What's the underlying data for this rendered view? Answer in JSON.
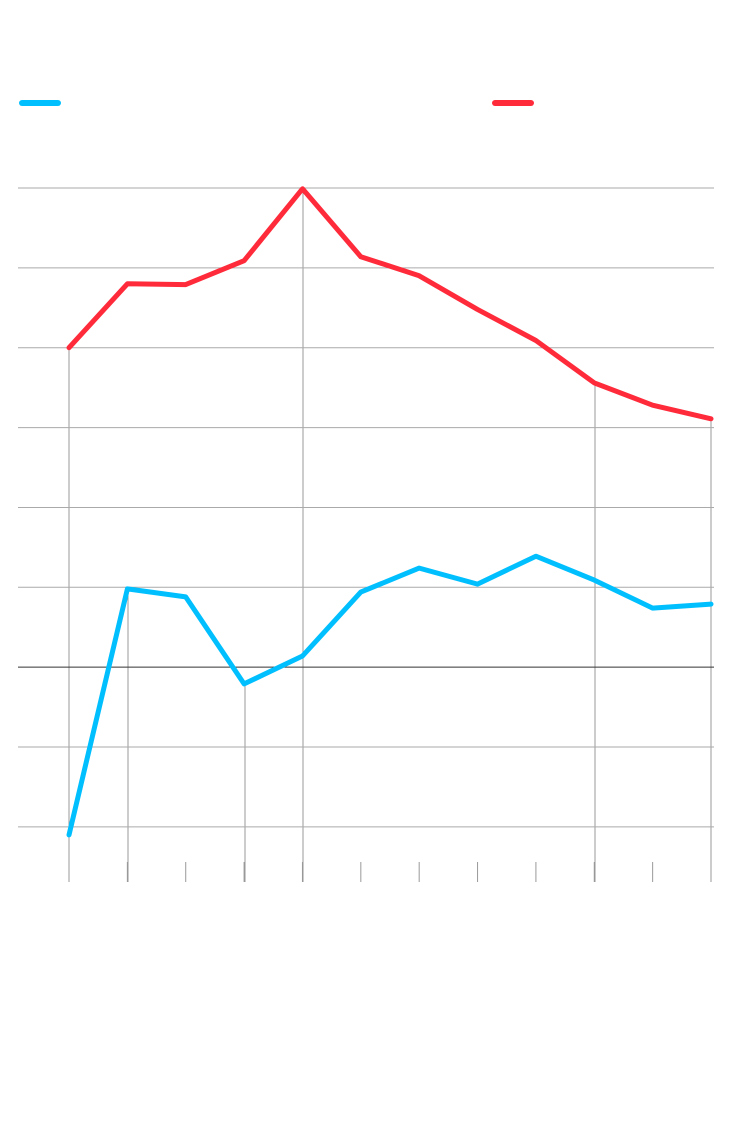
{
  "chart_data": {
    "type": "line",
    "categories": [
      null,
      null,
      null,
      null,
      null,
      null,
      null,
      null,
      null,
      null,
      null,
      null
    ],
    "series": [
      {
        "color": "#00bfff",
        "values": [
          -2.1,
          0.98,
          0.88,
          -0.21,
          0.14,
          0.94,
          1.24,
          1.04,
          1.39,
          1.09,
          0.74,
          0.79
        ]
      },
      {
        "color": "#ff2a3a",
        "values": [
          4.0,
          4.8,
          4.79,
          5.09,
          5.99,
          5.14,
          4.9,
          4.48,
          4.09,
          3.56,
          3.28,
          3.11
        ]
      }
    ],
    "ylim": [
      -2.69,
      6
    ],
    "yticks": [
      -2,
      -1,
      0,
      1,
      2,
      3,
      4,
      5,
      6
    ],
    "grid": true
  }
}
